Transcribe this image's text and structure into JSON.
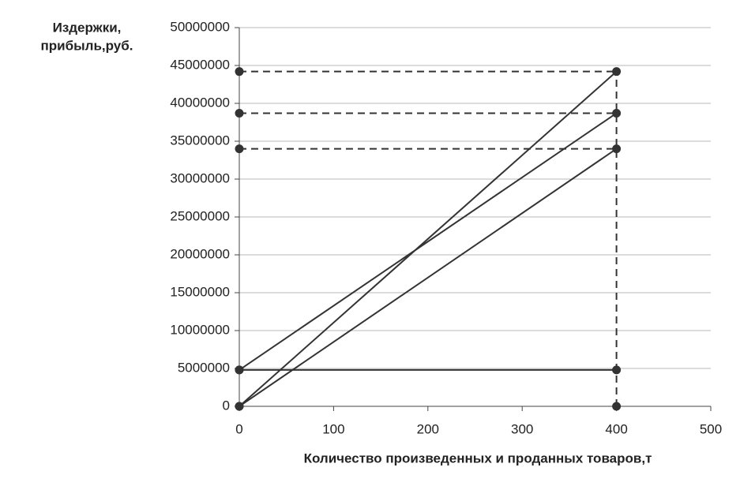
{
  "chart_data": {
    "type": "line",
    "ylabel": [
      "Издержки,",
      "прибыль,руб."
    ],
    "xlabel": "Количество произведенных и проданных товаров,т",
    "series": [
      {
        "color": "#333333",
        "x": [
          0,
          400
        ],
        "values": [
          4800000,
          4800000
        ],
        "guide": false
      },
      {
        "color": "#333333",
        "x": [
          0,
          400
        ],
        "values": [
          4800000,
          38700000
        ],
        "guide": true
      },
      {
        "color": "#333333",
        "x": [
          0,
          400
        ],
        "values": [
          0,
          44200000
        ],
        "guide": true
      },
      {
        "color": "#333333",
        "x": [
          0,
          400
        ],
        "values": [
          0,
          34000000
        ],
        "guide": true
      }
    ],
    "xlim": [
      0,
      500
    ],
    "xticks": [
      0,
      100,
      200,
      300,
      400,
      500
    ],
    "ylim": [
      0,
      50000000
    ],
    "yticks": [
      0,
      5000000,
      10000000,
      15000000,
      20000000,
      25000000,
      30000000,
      35000000,
      40000000,
      45000000,
      50000000
    ],
    "grid": true
  }
}
